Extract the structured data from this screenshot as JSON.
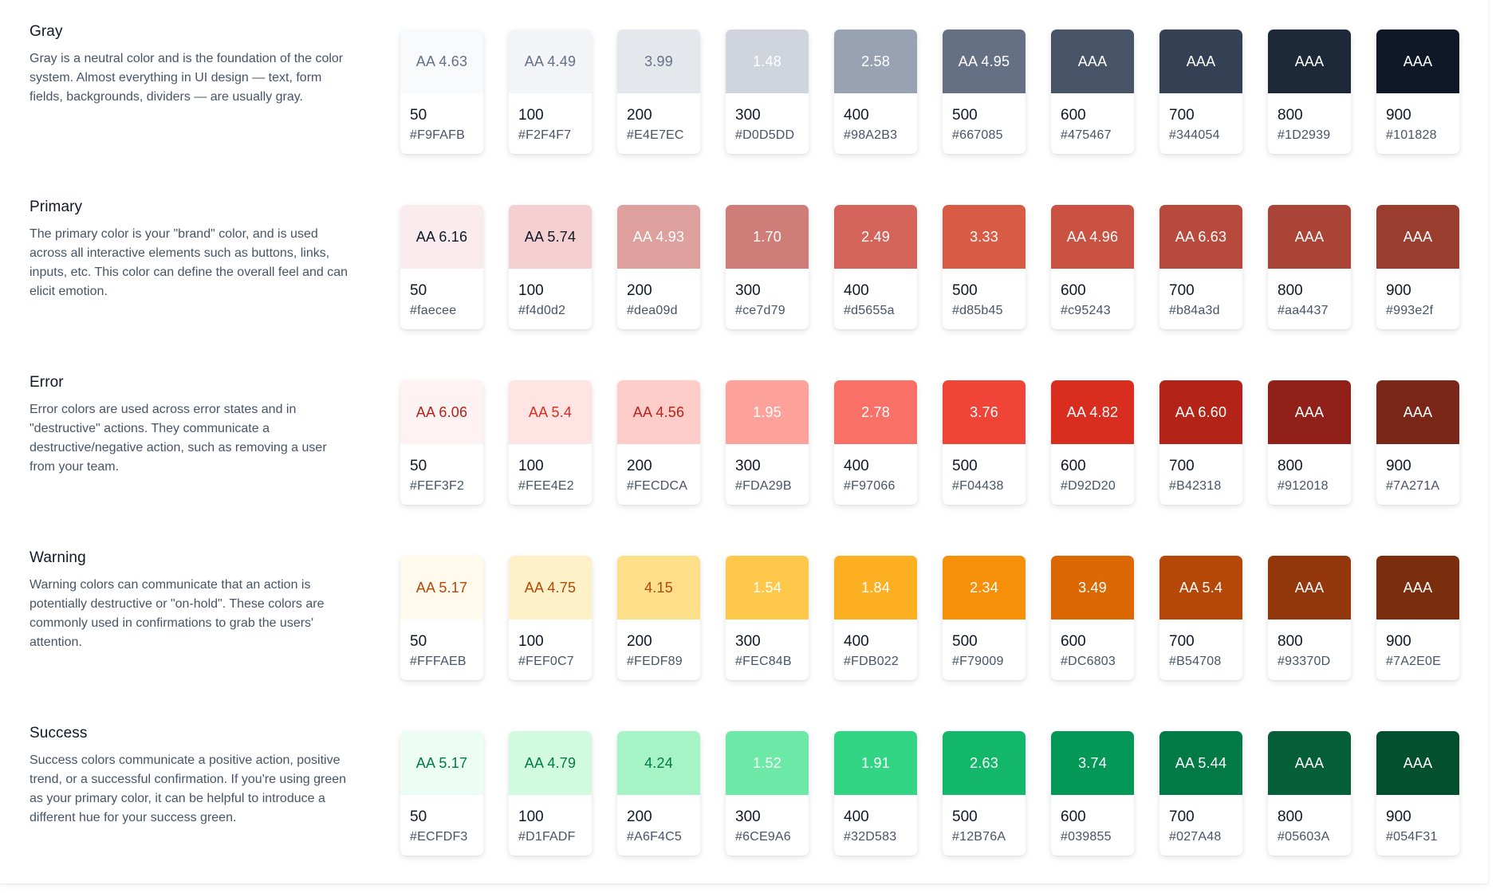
{
  "palettes": [
    {
      "name": "Gray",
      "description": "Gray is a neutral color and is the foundation of the color system. Almost everything in UI design — text, form fields, backgrounds, dividers — are usually gray.",
      "swatches": [
        {
          "step": "50",
          "hex": "#F9FAFB",
          "contrast": "AA 4.63",
          "color": "#F9FAFB",
          "text_color": "#667085"
        },
        {
          "step": "100",
          "hex": "#F2F4F7",
          "contrast": "AA 4.49",
          "color": "#F2F4F7",
          "text_color": "#667085"
        },
        {
          "step": "200",
          "hex": "#E4E7EC",
          "contrast": "3.99",
          "color": "#E4E7EC",
          "text_color": "#667085"
        },
        {
          "step": "300",
          "hex": "#D0D5DD",
          "contrast": "1.48",
          "color": "#D0D5DD",
          "text_color": "#FFFFFF"
        },
        {
          "step": "400",
          "hex": "#98A2B3",
          "contrast": "2.58",
          "color": "#98A2B3",
          "text_color": "#FFFFFF"
        },
        {
          "step": "500",
          "hex": "#667085",
          "contrast": "AA 4.95",
          "color": "#667085",
          "text_color": "#FFFFFF"
        },
        {
          "step": "600",
          "hex": "#475467",
          "contrast": "AAA",
          "color": "#475467",
          "text_color": "#FFFFFF"
        },
        {
          "step": "700",
          "hex": "#344054",
          "contrast": "AAA",
          "color": "#344054",
          "text_color": "#FFFFFF"
        },
        {
          "step": "800",
          "hex": "#1D2939",
          "contrast": "AAA",
          "color": "#1D2939",
          "text_color": "#FFFFFF"
        },
        {
          "step": "900",
          "hex": "#101828",
          "contrast": "AAA",
          "color": "#101828",
          "text_color": "#FFFFFF"
        }
      ]
    },
    {
      "name": "Primary",
      "description": "The primary color is your \"brand\" color, and is used across all interactive elements such as buttons, links, inputs, etc. This color can define the overall feel and can elicit emotion.",
      "swatches": [
        {
          "step": "50",
          "hex": "#faecee",
          "contrast": "AA 6.16",
          "color": "#faecee",
          "text_color": "#101828"
        },
        {
          "step": "100",
          "hex": "#f4d0d2",
          "contrast": "AA 5.74",
          "color": "#f4d0d2",
          "text_color": "#101828"
        },
        {
          "step": "200",
          "hex": "#dea09d",
          "contrast": "AA 4.93",
          "color": "#dea09d",
          "text_color": "#FFFFFF"
        },
        {
          "step": "300",
          "hex": "#ce7d79",
          "contrast": "1.70",
          "color": "#ce7d79",
          "text_color": "#FFFFFF"
        },
        {
          "step": "400",
          "hex": "#d5655a",
          "contrast": "2.49",
          "color": "#d5655a",
          "text_color": "#FFFFFF"
        },
        {
          "step": "500",
          "hex": "#d85b45",
          "contrast": "3.33",
          "color": "#d85b45",
          "text_color": "#FFFFFF"
        },
        {
          "step": "600",
          "hex": "#c95243",
          "contrast": "AA 4.96",
          "color": "#c95243",
          "text_color": "#FFFFFF"
        },
        {
          "step": "700",
          "hex": "#b84a3d",
          "contrast": "AA 6.63",
          "color": "#b84a3d",
          "text_color": "#FFFFFF"
        },
        {
          "step": "800",
          "hex": "#aa4437",
          "contrast": "AAA",
          "color": "#aa4437",
          "text_color": "#FFFFFF"
        },
        {
          "step": "900",
          "hex": "#993e2f",
          "contrast": "AAA",
          "color": "#993e2f",
          "text_color": "#FFFFFF"
        }
      ]
    },
    {
      "name": "Error",
      "description": "Error colors are used across error states and in \"destructive\" actions. They communicate a destructive/negative action, such as removing a user from your team.",
      "swatches": [
        {
          "step": "50",
          "hex": "#FEF3F2",
          "contrast": "AA 6.06",
          "color": "#FEF3F2",
          "text_color": "#B42318"
        },
        {
          "step": "100",
          "hex": "#FEE4E2",
          "contrast": "AA 5.4",
          "color": "#FEE4E2",
          "text_color": "#D92D20"
        },
        {
          "step": "200",
          "hex": "#FECDCA",
          "contrast": "AA 4.56",
          "color": "#FECDCA",
          "text_color": "#B42318"
        },
        {
          "step": "300",
          "hex": "#FDA29B",
          "contrast": "1.95",
          "color": "#FDA29B",
          "text_color": "#FFFFFF"
        },
        {
          "step": "400",
          "hex": "#F97066",
          "contrast": "2.78",
          "color": "#F97066",
          "text_color": "#FFFFFF"
        },
        {
          "step": "500",
          "hex": "#F04438",
          "contrast": "3.76",
          "color": "#F04438",
          "text_color": "#FFFFFF"
        },
        {
          "step": "600",
          "hex": "#D92D20",
          "contrast": "AA 4.82",
          "color": "#D92D20",
          "text_color": "#FFFFFF"
        },
        {
          "step": "700",
          "hex": "#B42318",
          "contrast": "AA 6.60",
          "color": "#B42318",
          "text_color": "#FFFFFF"
        },
        {
          "step": "800",
          "hex": "#912018",
          "contrast": "AAA",
          "color": "#912018",
          "text_color": "#FFFFFF"
        },
        {
          "step": "900",
          "hex": "#7A271A",
          "contrast": "AAA",
          "color": "#7A271A",
          "text_color": "#FFFFFF"
        }
      ]
    },
    {
      "name": "Warning",
      "description": "Warning colors can communicate that an action is potentially destructive or \"on-hold\". These colors are commonly used in confirmations to grab the users' attention.",
      "swatches": [
        {
          "step": "50",
          "hex": "#FFFAEB",
          "contrast": "AA 5.17",
          "color": "#FFFAEB",
          "text_color": "#B54708"
        },
        {
          "step": "100",
          "hex": "#FEF0C7",
          "contrast": "AA 4.75",
          "color": "#FEF0C7",
          "text_color": "#B54708"
        },
        {
          "step": "200",
          "hex": "#FEDF89",
          "contrast": "4.15",
          "color": "#FEDF89",
          "text_color": "#B54708"
        },
        {
          "step": "300",
          "hex": "#FEC84B",
          "contrast": "1.54",
          "color": "#FEC84B",
          "text_color": "#FFFFFF"
        },
        {
          "step": "400",
          "hex": "#FDB022",
          "contrast": "1.84",
          "color": "#FDB022",
          "text_color": "#FFFFFF"
        },
        {
          "step": "500",
          "hex": "#F79009",
          "contrast": "2.34",
          "color": "#F79009",
          "text_color": "#FFFFFF"
        },
        {
          "step": "600",
          "hex": "#DC6803",
          "contrast": "3.49",
          "color": "#DC6803",
          "text_color": "#FFFFFF"
        },
        {
          "step": "700",
          "hex": "#B54708",
          "contrast": "AA 5.4",
          "color": "#B54708",
          "text_color": "#FFFFFF"
        },
        {
          "step": "800",
          "hex": "#93370D",
          "contrast": "AAA",
          "color": "#93370D",
          "text_color": "#FFFFFF"
        },
        {
          "step": "900",
          "hex": "#7A2E0E",
          "contrast": "AAA",
          "color": "#7A2E0E",
          "text_color": "#FFFFFF"
        }
      ]
    },
    {
      "name": "Success",
      "description": "Success colors communicate a positive action, positive trend, or a successful confirmation. If you're using green as your primary color, it can be helpful to introduce a different hue for your success green.",
      "swatches": [
        {
          "step": "50",
          "hex": "#ECFDF3",
          "contrast": "AA 5.17",
          "color": "#ECFDF3",
          "text_color": "#027A48"
        },
        {
          "step": "100",
          "hex": "#D1FADF",
          "contrast": "AA 4.79",
          "color": "#D1FADF",
          "text_color": "#027A48"
        },
        {
          "step": "200",
          "hex": "#A6F4C5",
          "contrast": "4.24",
          "color": "#A6F4C5",
          "text_color": "#027A48"
        },
        {
          "step": "300",
          "hex": "#6CE9A6",
          "contrast": "1.52",
          "color": "#6CE9A6",
          "text_color": "#FFFFFF"
        },
        {
          "step": "400",
          "hex": "#32D583",
          "contrast": "1.91",
          "color": "#32D583",
          "text_color": "#FFFFFF"
        },
        {
          "step": "500",
          "hex": "#12B76A",
          "contrast": "2.63",
          "color": "#12B76A",
          "text_color": "#FFFFFF"
        },
        {
          "step": "600",
          "hex": "#039855",
          "contrast": "3.74",
          "color": "#039855",
          "text_color": "#FFFFFF"
        },
        {
          "step": "700",
          "hex": "#027A48",
          "contrast": "AA 5.44",
          "color": "#027A48",
          "text_color": "#FFFFFF"
        },
        {
          "step": "800",
          "hex": "#05603A",
          "contrast": "AAA",
          "color": "#05603A",
          "text_color": "#FFFFFF"
        },
        {
          "step": "900",
          "hex": "#054F31",
          "contrast": "AAA",
          "color": "#054F31",
          "text_color": "#FFFFFF"
        }
      ]
    }
  ]
}
